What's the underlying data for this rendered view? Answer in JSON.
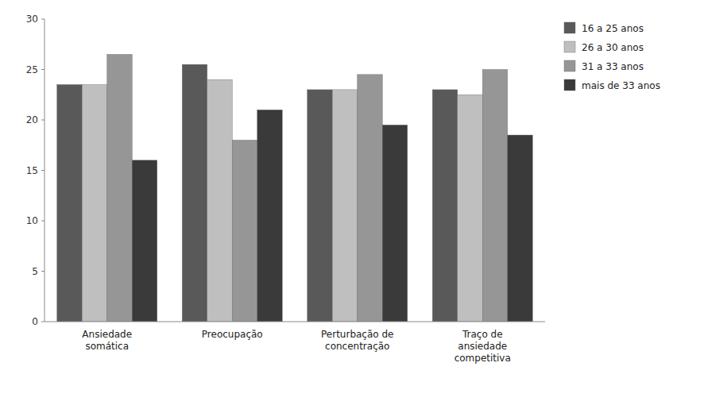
{
  "chart_data": {
    "type": "bar",
    "categories": [
      "Ansiedade\nsomática",
      "Preocupação",
      "Perturbação de\nconcentração",
      "Traço de\nansiedade\ncompetitiva"
    ],
    "series": [
      {
        "name": "16 a 25 anos",
        "color": "#595959",
        "values": [
          23.5,
          25.5,
          23.0,
          23.0
        ]
      },
      {
        "name": "26 a 30 anos",
        "color": "#bfbfbf",
        "values": [
          23.5,
          24.0,
          23.0,
          22.5
        ]
      },
      {
        "name": "31 a 33 anos",
        "color": "#969696",
        "values": [
          26.5,
          18.0,
          24.5,
          25.0
        ]
      },
      {
        "name": "mais de 33 anos",
        "color": "#3a3a3a",
        "values": [
          16.0,
          21.0,
          19.5,
          18.5
        ]
      }
    ],
    "ylim": [
      0,
      30
    ],
    "yticks": [
      0,
      5,
      10,
      15,
      20,
      25,
      30
    ],
    "grid": false,
    "legend": "right"
  }
}
